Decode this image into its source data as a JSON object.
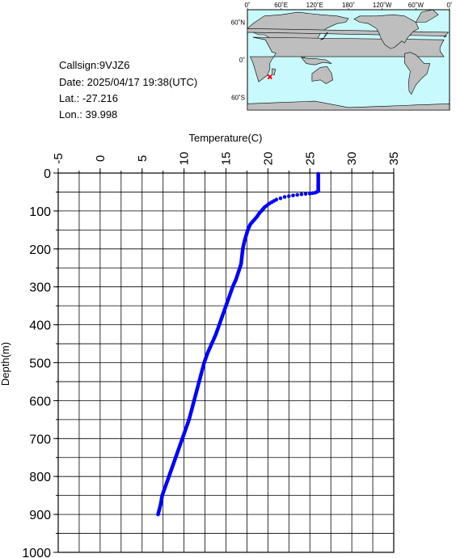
{
  "info": {
    "callsign": "Callsign:9VJZ6",
    "date": "Date:  2025/04/17 19:38(UTC)",
    "lat": "Lat.:  -27.216",
    "lon": "Lon.:   39.998"
  },
  "map": {
    "top_labels": [
      "0˚",
      "60˚E",
      "120˚E",
      "180˚",
      "120˚W",
      "60˚W",
      "0˚"
    ],
    "left_labels": [
      "60˚N",
      "0˚",
      "60˚S"
    ],
    "ocean_color": "#c8fafd",
    "land_color": "#bebebe",
    "marker_color": "#ff0000",
    "marker": {
      "lon": 40.0,
      "lat": -27.216
    }
  },
  "chart_data": {
    "type": "scatter",
    "title": "",
    "xlabel": "Temperature(C)",
    "ylabel": "Depth(m)",
    "xlim": [
      -5,
      35
    ],
    "ylim": [
      1000,
      0
    ],
    "xticks": [
      -5,
      0,
      5,
      10,
      15,
      20,
      25,
      30,
      35
    ],
    "yticks": [
      0,
      100,
      200,
      300,
      400,
      500,
      600,
      700,
      800,
      900,
      1000
    ],
    "xtick_labels": [
      "-5",
      "0",
      "5",
      "10",
      "15",
      "20",
      "25",
      "30",
      "35"
    ],
    "ytick_labels": [
      "0",
      "100",
      "200",
      "300",
      "400",
      "500",
      "600",
      "700",
      "800",
      "900",
      "1000"
    ],
    "grid": true,
    "series_color": "#0000ff",
    "profile": [
      [
        26.0,
        2
      ],
      [
        26.0,
        10
      ],
      [
        26.0,
        20
      ],
      [
        26.0,
        30
      ],
      [
        26.0,
        40
      ],
      [
        26.0,
        48
      ],
      [
        25.6,
        52
      ],
      [
        25.0,
        54
      ],
      [
        24.0,
        56
      ],
      [
        23.0,
        59
      ],
      [
        22.0,
        63
      ],
      [
        21.0,
        70
      ],
      [
        20.2,
        80
      ],
      [
        19.6,
        90
      ],
      [
        19.3,
        98
      ],
      [
        19.0,
        105
      ],
      [
        18.7,
        115
      ],
      [
        18.3,
        125
      ],
      [
        17.9,
        135
      ],
      [
        17.6,
        150
      ],
      [
        17.4,
        165
      ],
      [
        17.2,
        180
      ],
      [
        17.0,
        200
      ],
      [
        16.9,
        220
      ],
      [
        16.8,
        240
      ],
      [
        16.5,
        260
      ],
      [
        16.2,
        280
      ],
      [
        15.8,
        300
      ],
      [
        15.4,
        325
      ],
      [
        15.0,
        350
      ],
      [
        14.6,
        375
      ],
      [
        14.2,
        400
      ],
      [
        13.8,
        425
      ],
      [
        13.3,
        450
      ],
      [
        12.8,
        475
      ],
      [
        12.4,
        500
      ],
      [
        12.1,
        525
      ],
      [
        11.8,
        550
      ],
      [
        11.5,
        575
      ],
      [
        11.2,
        600
      ],
      [
        10.9,
        625
      ],
      [
        10.6,
        650
      ],
      [
        10.2,
        675
      ],
      [
        9.8,
        700
      ],
      [
        9.4,
        725
      ],
      [
        9.0,
        750
      ],
      [
        8.6,
        775
      ],
      [
        8.2,
        800
      ],
      [
        7.8,
        825
      ],
      [
        7.4,
        850
      ],
      [
        7.2,
        875
      ],
      [
        6.9,
        900
      ]
    ]
  }
}
